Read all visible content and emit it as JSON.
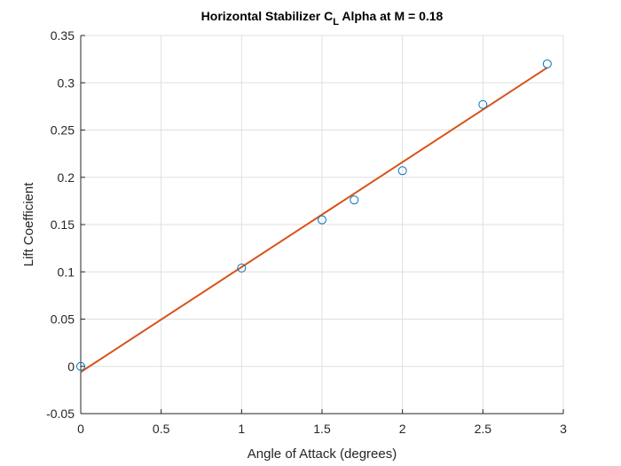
{
  "chart_data": {
    "type": "scatter",
    "title": {
      "main": "Horizontal Stabilizer C",
      "subscript": "L",
      "rest": " Alpha at M = 0.18"
    },
    "xlabel": "Angle of Attack (degrees)",
    "ylabel": "Lift Coefficient",
    "xlim": [
      0,
      3
    ],
    "ylim": [
      -0.05,
      0.35
    ],
    "xticks": [
      0,
      0.5,
      1,
      1.5,
      2,
      2.5,
      3
    ],
    "xtick_labels": [
      "0",
      "0.5",
      "1",
      "1.5",
      "2",
      "2.5",
      "3"
    ],
    "yticks": [
      -0.05,
      0,
      0.05,
      0.1,
      0.15,
      0.2,
      0.25,
      0.3,
      0.35
    ],
    "ytick_labels": [
      "-0.05",
      "0",
      "0.05",
      "0.1",
      "0.15",
      "0.2",
      "0.25",
      "0.3",
      "0.35"
    ],
    "grid": true,
    "series": [
      {
        "kind": "scatter",
        "marker": "open-circle",
        "color": "#0072BD",
        "x": [
          0,
          1,
          1.5,
          1.7,
          2,
          2.5,
          2.9
        ],
        "y": [
          0.0,
          0.104,
          0.155,
          0.176,
          0.207,
          0.277,
          0.32
        ]
      },
      {
        "kind": "line",
        "color": "#D95319",
        "x": [
          0,
          2.9
        ],
        "y": [
          -0.006,
          0.316
        ]
      }
    ]
  }
}
